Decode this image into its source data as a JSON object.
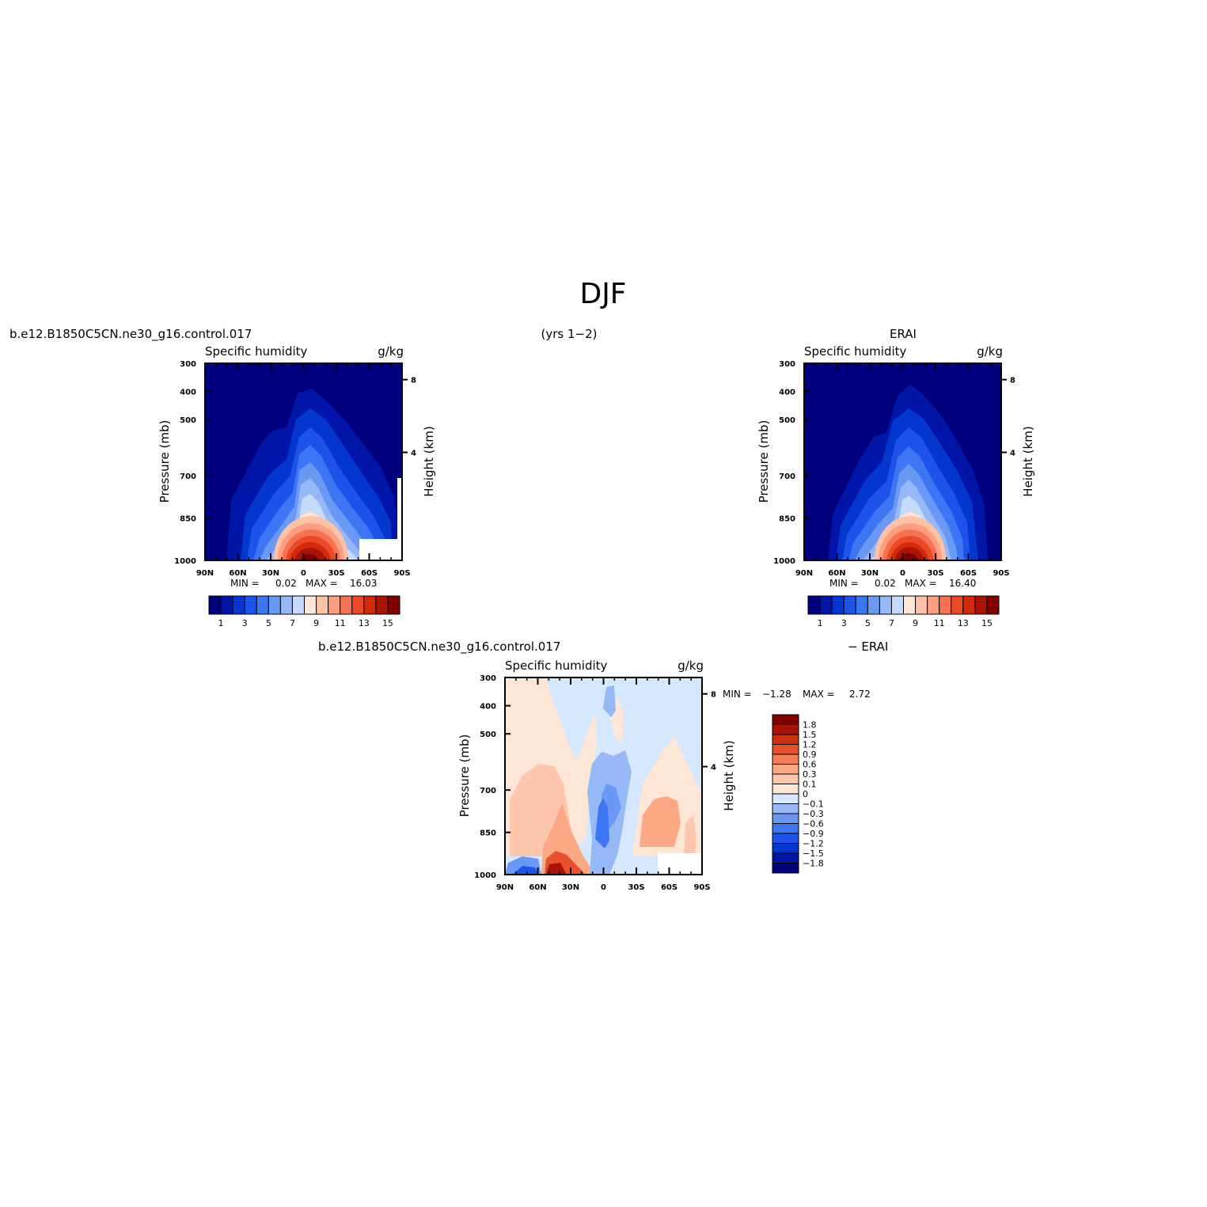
{
  "figure": {
    "main_title": "DJF",
    "years_label": "(yrs 1−2)",
    "model_case": "b.e12.B1850C5CN.ne30_g16.control.017",
    "obs_name": "ERAI",
    "diff_right_label": "− ERAI"
  },
  "chart_data": [
    {
      "type": "heatmap",
      "panel": "model",
      "title": "Specific humidity",
      "units": "g/kg",
      "ylabel": "Pressure (mb)",
      "y2label": "Height (km)",
      "x_ticks": [
        "90N",
        "60N",
        "30N",
        "0",
        "30S",
        "60S",
        "90S"
      ],
      "x_values": [
        90,
        60,
        30,
        0,
        -30,
        -60,
        -90
      ],
      "y_ticks": [
        300,
        400,
        500,
        700,
        850,
        1000
      ],
      "y2_ticks": [
        8,
        4
      ],
      "ylim": [
        1000,
        300
      ],
      "min_label": "MIN =",
      "min_value": "0.02",
      "max_label": "MAX =",
      "max_value": "16.03",
      "levels": [
        1,
        2,
        3,
        4,
        5,
        6,
        7,
        8,
        9,
        10,
        11,
        12,
        13,
        14,
        15
      ],
      "colorbar_labels": [
        "1",
        "3",
        "5",
        "7",
        "9",
        "11",
        "13",
        "15"
      ],
      "peak": {
        "lat": -5,
        "pressure": 985,
        "value": 16.03
      }
    },
    {
      "type": "heatmap",
      "panel": "obs",
      "title": "Specific humidity",
      "units": "g/kg",
      "ylabel": "Pressure (mb)",
      "y2label": "Height (km)",
      "x_ticks": [
        "90N",
        "60N",
        "30N",
        "0",
        "30S",
        "60S",
        "90S"
      ],
      "x_values": [
        90,
        60,
        30,
        0,
        -30,
        -60,
        -90
      ],
      "y_ticks": [
        300,
        400,
        500,
        700,
        850,
        1000
      ],
      "y2_ticks": [
        8,
        4
      ],
      "ylim": [
        1000,
        300
      ],
      "min_label": "MIN =",
      "min_value": "0.02",
      "max_label": "MAX =",
      "max_value": "16.40",
      "levels": [
        1,
        2,
        3,
        4,
        5,
        6,
        7,
        8,
        9,
        10,
        11,
        12,
        13,
        14,
        15
      ],
      "colorbar_labels": [
        "1",
        "3",
        "5",
        "7",
        "9",
        "11",
        "13",
        "15"
      ],
      "peak": {
        "lat": -5,
        "pressure": 985,
        "value": 16.4
      }
    },
    {
      "type": "heatmap",
      "panel": "difference",
      "title": "Specific humidity",
      "units": "g/kg",
      "ylabel": "Pressure (mb)",
      "y2label": "Height (km)",
      "x_ticks": [
        "90N",
        "60N",
        "30N",
        "0",
        "30S",
        "60S",
        "90S"
      ],
      "x_values": [
        90,
        60,
        30,
        0,
        -30,
        -60,
        -90
      ],
      "y_ticks": [
        300,
        400,
        500,
        700,
        850,
        1000
      ],
      "y2_ticks": [
        8,
        4
      ],
      "ylim": [
        1000,
        300
      ],
      "min_label": "MIN =",
      "min_value": "−1.28",
      "max_label": "MAX =",
      "max_value": "2.72",
      "levels": [
        -1.8,
        -1.5,
        -1.2,
        -0.9,
        -0.6,
        -0.3,
        -0.1,
        0,
        0.1,
        0.3,
        0.6,
        0.9,
        1.2,
        1.5,
        1.8
      ],
      "colorbar_labels": [
        "1.8",
        "1.5",
        "1.2",
        "0.9",
        "0.6",
        "0.3",
        "0.1",
        "0",
        "−0.1",
        "−0.3",
        "−0.6",
        "−0.9",
        "−1.2",
        "−1.5",
        "−1.8"
      ],
      "features": [
        {
          "lat": 50,
          "pressure": 990,
          "value": 2.72
        },
        {
          "lat": 40,
          "pressure": 900,
          "value": 0.9
        },
        {
          "lat": 70,
          "pressure": 750,
          "value": 0.3
        },
        {
          "lat": 45,
          "pressure": 620,
          "value": 0.3
        },
        {
          "lat": -50,
          "pressure": 830,
          "value": 0.6
        },
        {
          "lat": -75,
          "pressure": 850,
          "value": 0.3
        },
        {
          "lat": 5,
          "pressure": 830,
          "value": -0.9
        },
        {
          "lat": -15,
          "pressure": 720,
          "value": -0.3
        },
        {
          "lat": 15,
          "pressure": 650,
          "value": -0.3
        },
        {
          "lat": 0,
          "pressure": 420,
          "value": -0.3
        },
        {
          "lat": 80,
          "pressure": 995,
          "value": -0.9
        },
        {
          "lat": -5,
          "pressure": 960,
          "value": -0.6
        }
      ]
    }
  ],
  "colors": {
    "seq_palette": [
      "#00007f",
      "#0016a8",
      "#0436d0",
      "#1c53ea",
      "#3d76f3",
      "#6a99f5",
      "#97b8f6",
      "#c6dafb",
      "#fde6d6",
      "#fdc1a6",
      "#fb9f80",
      "#f77252",
      "#ea4a26",
      "#d12b0b",
      "#aa1404",
      "#800000"
    ],
    "div_palette": [
      "#00007f",
      "#0016a8",
      "#0436d0",
      "#1c53ea",
      "#3d76f3",
      "#6a99f5",
      "#97b8f6",
      "#d6e8ff",
      "#fde6d6",
      "#fdc7ad",
      "#fca884",
      "#f77d56",
      "#e9502b",
      "#cf2d0f",
      "#a81406",
      "#800000"
    ]
  }
}
